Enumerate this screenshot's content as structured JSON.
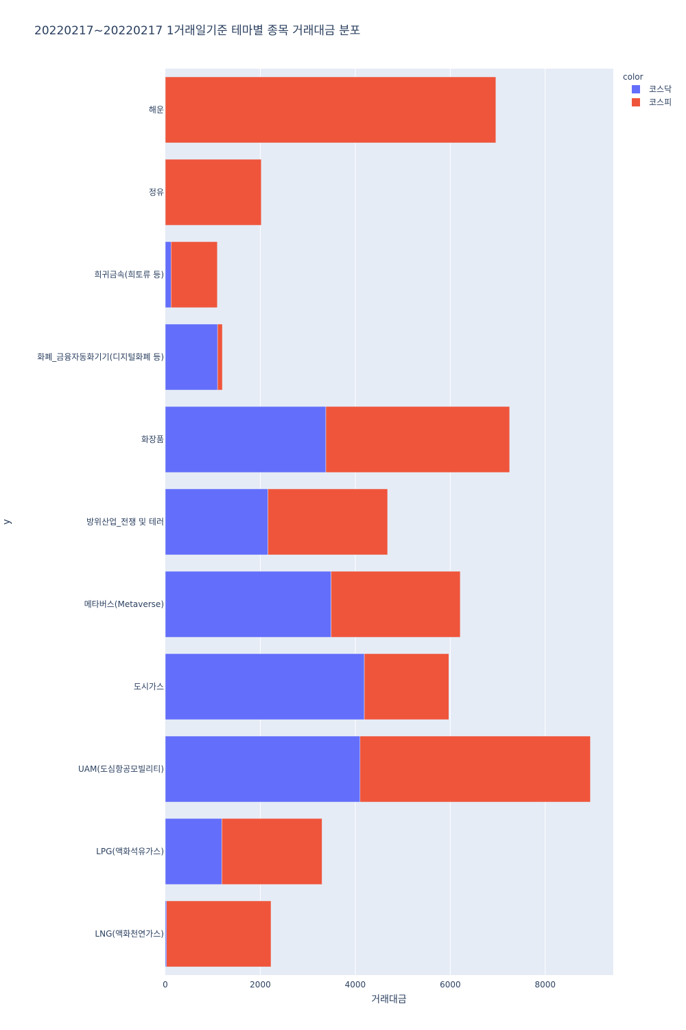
{
  "chart_data": {
    "type": "bar",
    "orientation": "horizontal",
    "barmode": "stack",
    "title": "20220217~20220217 1거래일기준 테마별 종목 거래대금 분포",
    "xlabel": "거래대금",
    "ylabel": "y",
    "xlim": [
      0,
      9433
    ],
    "xticks": [
      0,
      2000,
      4000,
      6000,
      8000
    ],
    "grid": true,
    "legend_title": "color",
    "legend_position": "top-right",
    "categories": [
      "해운",
      "정유",
      "희귀금속(희토류 등)",
      "화폐_금융자동화기기(디지털화폐 등)",
      "화장품",
      "방위산업_전쟁 및 테러",
      "메타버스(Metaverse)",
      "도시가스",
      "UAM(도심항공모빌리티)",
      "LPG(액화석유가스)",
      "LNG(액화천연가스)"
    ],
    "series": [
      {
        "name": "코스닥",
        "color": "#636efa",
        "values": [
          0,
          0,
          120,
          1100,
          3380,
          2160,
          3490,
          4190,
          4100,
          1190,
          25
        ]
      },
      {
        "name": "코스피",
        "color": "#ef553b",
        "values": [
          6960,
          2020,
          975,
          100,
          3870,
          2520,
          2720,
          1780,
          4850,
          2110,
          2200
        ]
      }
    ]
  }
}
